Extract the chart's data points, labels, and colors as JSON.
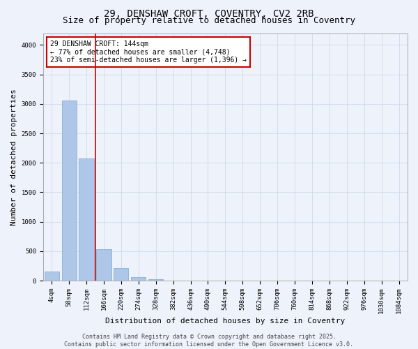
{
  "title_line1": "29, DENSHAW CROFT, COVENTRY, CV2 2RB",
  "title_line2": "Size of property relative to detached houses in Coventry",
  "xlabel": "Distribution of detached houses by size in Coventry",
  "ylabel": "Number of detached properties",
  "bar_color": "#aec6e8",
  "bar_edge_color": "#7aaad0",
  "background_color": "#eef2fb",
  "grid_color": "#c8d4e8",
  "vline_color": "#cc0000",
  "annotation_text": "29 DENSHAW CROFT: 144sqm\n← 77% of detached houses are smaller (4,748)\n23% of semi-detached houses are larger (1,396) →",
  "annotation_box_color": "#ffffff",
  "annotation_box_edge_color": "#cc0000",
  "categories": [
    "4sqm",
    "58sqm",
    "112sqm",
    "166sqm",
    "220sqm",
    "274sqm",
    "328sqm",
    "382sqm",
    "436sqm",
    "490sqm",
    "544sqm",
    "598sqm",
    "652sqm",
    "706sqm",
    "760sqm",
    "814sqm",
    "868sqm",
    "922sqm",
    "976sqm",
    "1030sqm",
    "1084sqm"
  ],
  "values": [
    150,
    3060,
    2075,
    530,
    215,
    65,
    20,
    5,
    0,
    0,
    0,
    0,
    0,
    0,
    0,
    0,
    0,
    0,
    0,
    0,
    0
  ],
  "ylim": [
    0,
    4200
  ],
  "yticks": [
    0,
    500,
    1000,
    1500,
    2000,
    2500,
    3000,
    3500,
    4000
  ],
  "footer_line1": "Contains HM Land Registry data © Crown copyright and database right 2025.",
  "footer_line2": "Contains public sector information licensed under the Open Government Licence v3.0.",
  "title_fontsize": 10,
  "subtitle_fontsize": 9,
  "axis_label_fontsize": 8,
  "tick_fontsize": 6.5,
  "annotation_fontsize": 7,
  "footer_fontsize": 6
}
